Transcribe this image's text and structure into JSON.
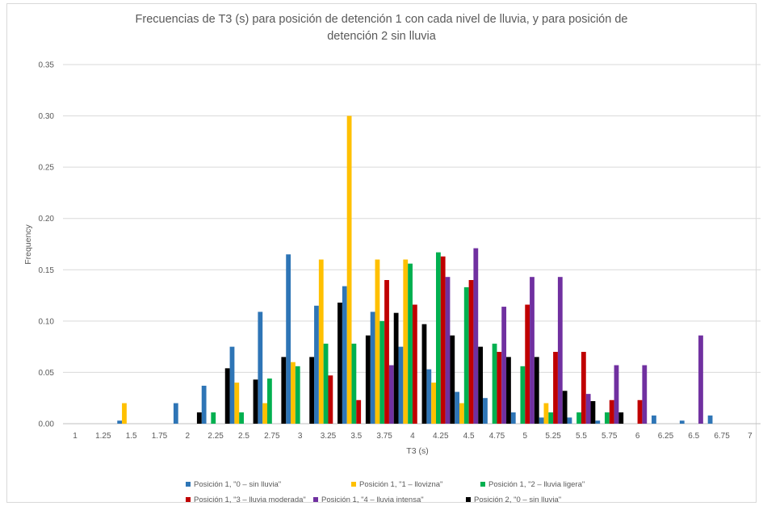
{
  "chart_data": {
    "type": "bar",
    "title_line1": "Frecuencias de T3 (s) para posición de detención 1 con cada nivel de lluvia, y para posición de",
    "title_line2": "detención 2 sin lluvia",
    "xlabel": "T3 (s)",
    "ylabel": "Frequency",
    "ylim": [
      0,
      0.35
    ],
    "yticks": [
      "0.00",
      "0.05",
      "0.10",
      "0.15",
      "0.20",
      "0.25",
      "0.30",
      "0.35"
    ],
    "categories": [
      "1",
      "1.25",
      "1.5",
      "1.75",
      "2",
      "2.25",
      "2.5",
      "2.75",
      "3",
      "3.25",
      "3.5",
      "3.75",
      "4",
      "4.25",
      "4.5",
      "4.75",
      "5",
      "5.25",
      "5.5",
      "5.75",
      "6",
      "6.25",
      "6.5",
      "6.75",
      "7"
    ],
    "grid": true,
    "legend_position": "bottom",
    "series": [
      {
        "name": "Posición 1, \"0 – sin lluvia\"",
        "color": "#2e75b6",
        "values": [
          0,
          0,
          0.003,
          0,
          0.02,
          0.037,
          0.075,
          0.109,
          0.165,
          0.115,
          0.134,
          0.109,
          0.075,
          0.053,
          0.031,
          0.025,
          0.011,
          0.006,
          0.006,
          0.003,
          0,
          0.008,
          0.003,
          0.008,
          0
        ]
      },
      {
        "name": "Posición 1, \"1 – llovizna\"",
        "color": "#ffc000",
        "values": [
          0,
          0,
          0.02,
          0,
          0,
          0,
          0.04,
          0.02,
          0.06,
          0.16,
          0.3,
          0.16,
          0.16,
          0.04,
          0.02,
          0,
          0,
          0.02,
          0,
          0,
          0,
          0,
          0,
          0,
          0
        ]
      },
      {
        "name": "Posición 1, \"2 – lluvia ligera\"",
        "color": "#00b050",
        "values": [
          0,
          0,
          0,
          0,
          0,
          0.011,
          0.011,
          0.044,
          0.056,
          0.078,
          0.078,
          0.1,
          0.156,
          0.167,
          0.133,
          0.078,
          0.056,
          0.011,
          0.011,
          0.011,
          0,
          0,
          0,
          0,
          0
        ]
      },
      {
        "name": "Posición 1, \"3 – lluvia moderada\"",
        "color": "#c00000",
        "values": [
          0,
          0,
          0,
          0,
          0,
          0,
          0,
          0,
          0,
          0.047,
          0.023,
          0.14,
          0.116,
          0.163,
          0.14,
          0.07,
          0.116,
          0.07,
          0.07,
          0.023,
          0.023,
          0,
          0,
          0,
          0
        ]
      },
      {
        "name": "Posición 1, \"4 – lluvia intensa\"",
        "color": "#7030a0",
        "values": [
          0,
          0,
          0,
          0,
          0,
          0,
          0,
          0,
          0,
          0,
          0,
          0.057,
          0,
          0.143,
          0.171,
          0.114,
          0.143,
          0.143,
          0.029,
          0.057,
          0.057,
          0,
          0.086,
          0,
          0
        ]
      },
      {
        "name": "Posición 2, \"0 – sin lluvia\"",
        "color": "#000000",
        "values": [
          0,
          0,
          0,
          0,
          0.011,
          0.054,
          0.043,
          0.065,
          0.065,
          0.118,
          0.086,
          0.108,
          0.097,
          0.086,
          0.075,
          0.065,
          0.065,
          0.032,
          0.022,
          0.011,
          0,
          0,
          0,
          0,
          0
        ]
      }
    ]
  }
}
